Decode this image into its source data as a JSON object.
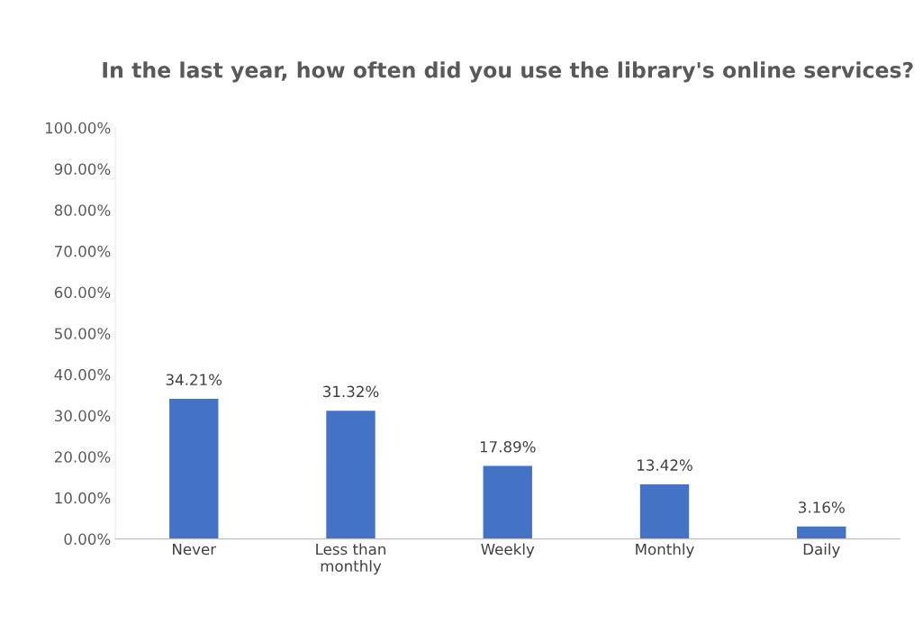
{
  "chart_data": {
    "type": "bar",
    "title": "In the last year, how often did you use the library's online services?",
    "categories": [
      "Never",
      "Less than\nmonthly",
      "Weekly",
      "Monthly",
      "Daily"
    ],
    "values": [
      34.21,
      31.32,
      17.89,
      13.42,
      3.16
    ],
    "value_labels": [
      "34.21%",
      "31.32%",
      "17.89%",
      "13.42%",
      "3.16%"
    ],
    "color": "#4472c4",
    "ylim": [
      0,
      100
    ],
    "yticks": [
      {
        "value": 0,
        "label": "0.00%"
      },
      {
        "value": 10,
        "label": "10.00%"
      },
      {
        "value": 20,
        "label": "20.00%"
      },
      {
        "value": 30,
        "label": "30.00%"
      },
      {
        "value": 40,
        "label": "40.00%"
      },
      {
        "value": 50,
        "label": "50.00%"
      },
      {
        "value": 60,
        "label": "60.00%"
      },
      {
        "value": 70,
        "label": "70.00%"
      },
      {
        "value": 80,
        "label": "80.00%"
      },
      {
        "value": 90,
        "label": "90.00%"
      },
      {
        "value": 100,
        "label": "100.00%"
      }
    ],
    "grid": false
  }
}
